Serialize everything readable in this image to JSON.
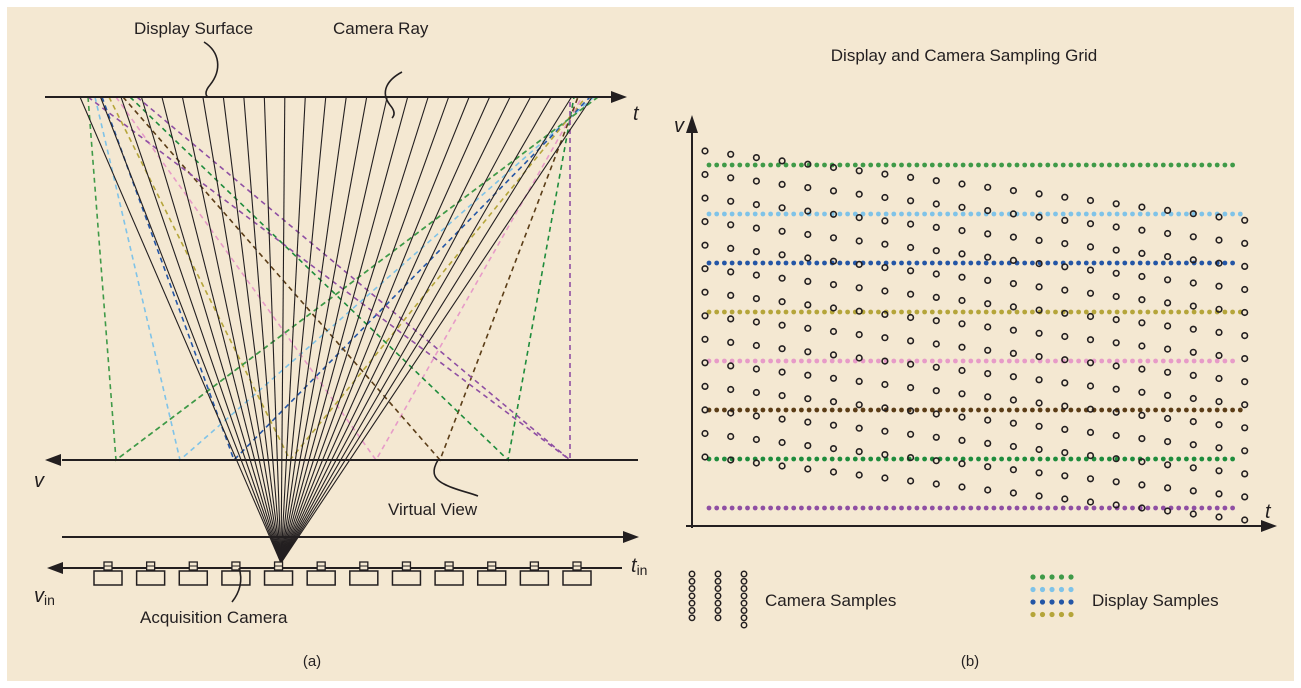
{
  "colors": {
    "background": "#f4e8d2",
    "ink": "#231f20",
    "display_rows": [
      "#3f9a48",
      "#7fc3e8",
      "#2456a6",
      "#b5a53a",
      "#e79bc8",
      "#5b3d17",
      "#1e8c3c",
      "#8f4fa3"
    ]
  },
  "panel_a": {
    "display_surface": "Display Surface",
    "camera_ray": "Camera Ray",
    "axis_t": "t",
    "axis_v": "v",
    "virtual_view": "Virtual View",
    "axis_t_in_main": "t",
    "axis_t_in_sub": "in",
    "axis_v_in_main": "v",
    "axis_v_in_sub": "in",
    "acquisition_camera": "Acquisition Camera",
    "caption": "(a)",
    "camera_count": 12,
    "ray_count": 26
  },
  "panel_b": {
    "title": "Display and Camera Sampling Grid",
    "axis_v": "v",
    "axis_t": "t",
    "legend_camera": "Camera Samples",
    "legend_display": "Display Samples",
    "legend_display_colors": [
      "#3f9a48",
      "#7fc3e8",
      "#2456a6",
      "#b5a53a"
    ],
    "caption": "(b)",
    "display_row_count": 8,
    "camera_column_count": 22
  }
}
